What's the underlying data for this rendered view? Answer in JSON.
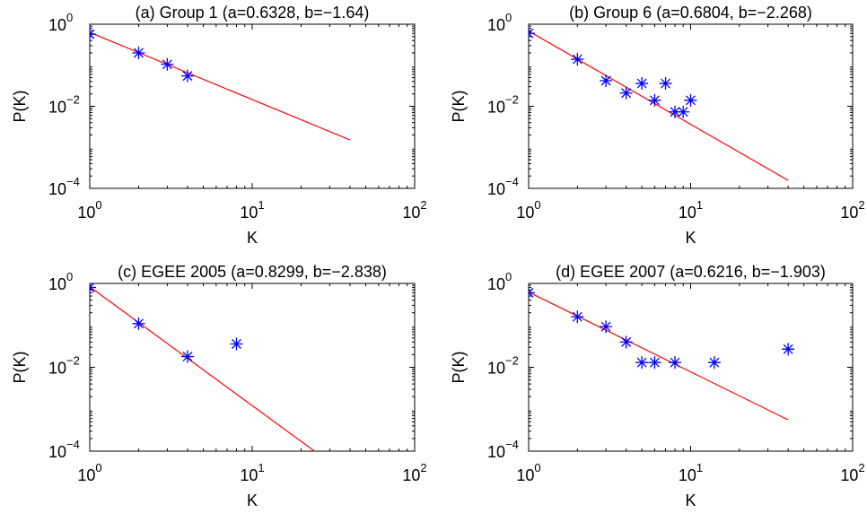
{
  "chart_data": [
    {
      "type": "scatter",
      "title": "(a) Group 1 (a=0.6328, b=−1.64)",
      "xlabel": "K",
      "ylabel": "P(K)",
      "xscale": "log",
      "yscale": "log",
      "xlim": [
        1,
        100
      ],
      "ylim": [
        0.0001,
        1
      ],
      "grid": false,
      "xticks": [
        {
          "value": 1,
          "base": "10",
          "exp": "0"
        },
        {
          "value": 10,
          "base": "10",
          "exp": "1"
        },
        {
          "value": 100,
          "base": "10",
          "exp": "2"
        }
      ],
      "yticks": [
        {
          "value": 1,
          "base": "10",
          "exp": "0"
        },
        {
          "value": 0.01,
          "base": "10",
          "exp": "-2"
        },
        {
          "value": 0.0001,
          "base": "10",
          "exp": "-4"
        }
      ],
      "series": [
        {
          "marker": "asterisk",
          "color": "#0000ff",
          "points": [
            [
              1,
              0.57
            ],
            [
              2,
              0.2
            ],
            [
              3,
              0.105
            ],
            [
              4,
              0.055
            ]
          ]
        }
      ],
      "fit": {
        "color": "#ff0000",
        "x": [
          1,
          40
        ],
        "y": [
          0.6328,
          0.00151
        ]
      }
    },
    {
      "type": "scatter",
      "title": "(b) Group 6 (a=0.6804, b=−2.268)",
      "xlabel": "K",
      "ylabel": "P(K)",
      "xscale": "log",
      "yscale": "log",
      "xlim": [
        1,
        100
      ],
      "ylim": [
        0.0001,
        1
      ],
      "grid": false,
      "xticks": [
        {
          "value": 1,
          "base": "10",
          "exp": "0"
        },
        {
          "value": 10,
          "base": "10",
          "exp": "1"
        },
        {
          "value": 100,
          "base": "10",
          "exp": "2"
        }
      ],
      "yticks": [
        {
          "value": 1,
          "base": "10",
          "exp": "0"
        },
        {
          "value": 0.01,
          "base": "10",
          "exp": "-2"
        },
        {
          "value": 0.0001,
          "base": "10",
          "exp": "-4"
        }
      ],
      "series": [
        {
          "marker": "asterisk",
          "color": "#0000ff",
          "points": [
            [
              1,
              0.6
            ],
            [
              2,
              0.14
            ],
            [
              3,
              0.042
            ],
            [
              4,
              0.021
            ],
            [
              5,
              0.036
            ],
            [
              6,
              0.014
            ],
            [
              7,
              0.036
            ],
            [
              8,
              0.0073
            ],
            [
              9,
              0.0073
            ],
            [
              10,
              0.014
            ]
          ]
        }
      ],
      "fit": {
        "color": "#ff0000",
        "x": [
          1,
          40
        ],
        "y": [
          0.6804,
          0.000156
        ]
      }
    },
    {
      "type": "scatter",
      "title": "(c) EGEE 2005 (a=0.8299, b=−2.838)",
      "xlabel": "K",
      "ylabel": "P(K)",
      "xscale": "log",
      "yscale": "log",
      "xlim": [
        1,
        100
      ],
      "ylim": [
        0.0001,
        1
      ],
      "grid": false,
      "xticks": [
        {
          "value": 1,
          "base": "10",
          "exp": "0"
        },
        {
          "value": 10,
          "base": "10",
          "exp": "1"
        },
        {
          "value": 100,
          "base": "10",
          "exp": "2"
        }
      ],
      "yticks": [
        {
          "value": 1,
          "base": "10",
          "exp": "0"
        },
        {
          "value": 0.01,
          "base": "10",
          "exp": "-2"
        },
        {
          "value": 0.0001,
          "base": "10",
          "exp": "-4"
        }
      ],
      "series": [
        {
          "marker": "asterisk",
          "color": "#0000ff",
          "points": [
            [
              1,
              0.8
            ],
            [
              2,
              0.11
            ],
            [
              4,
              0.018
            ],
            [
              8,
              0.036
            ]
          ]
        }
      ],
      "fit": {
        "color": "#ff0000",
        "x": [
          1,
          24
        ],
        "y": [
          0.8299,
          0.000102
        ]
      }
    },
    {
      "type": "scatter",
      "title": "(d) EGEE 2007 (a=0.6216, b=−1.903)",
      "xlabel": "K",
      "ylabel": "P(K)",
      "xscale": "log",
      "yscale": "log",
      "xlim": [
        1,
        100
      ],
      "ylim": [
        0.0001,
        1
      ],
      "grid": false,
      "xticks": [
        {
          "value": 1,
          "base": "10",
          "exp": "0"
        },
        {
          "value": 10,
          "base": "10",
          "exp": "1"
        },
        {
          "value": 100,
          "base": "10",
          "exp": "2"
        }
      ],
      "yticks": [
        {
          "value": 1,
          "base": "10",
          "exp": "0"
        },
        {
          "value": 0.01,
          "base": "10",
          "exp": "-2"
        },
        {
          "value": 0.0001,
          "base": "10",
          "exp": "-4"
        }
      ],
      "series": [
        {
          "marker": "asterisk",
          "color": "#0000ff",
          "points": [
            [
              1,
              0.6
            ],
            [
              2,
              0.16
            ],
            [
              3,
              0.093
            ],
            [
              4,
              0.04
            ],
            [
              5,
              0.013
            ],
            [
              6,
              0.013
            ],
            [
              8,
              0.013
            ],
            [
              14,
              0.013
            ],
            [
              40,
              0.027
            ]
          ]
        }
      ],
      "fit": {
        "color": "#ff0000",
        "x": [
          1,
          40
        ],
        "y": [
          0.6216,
          0.000557
        ]
      }
    }
  ]
}
